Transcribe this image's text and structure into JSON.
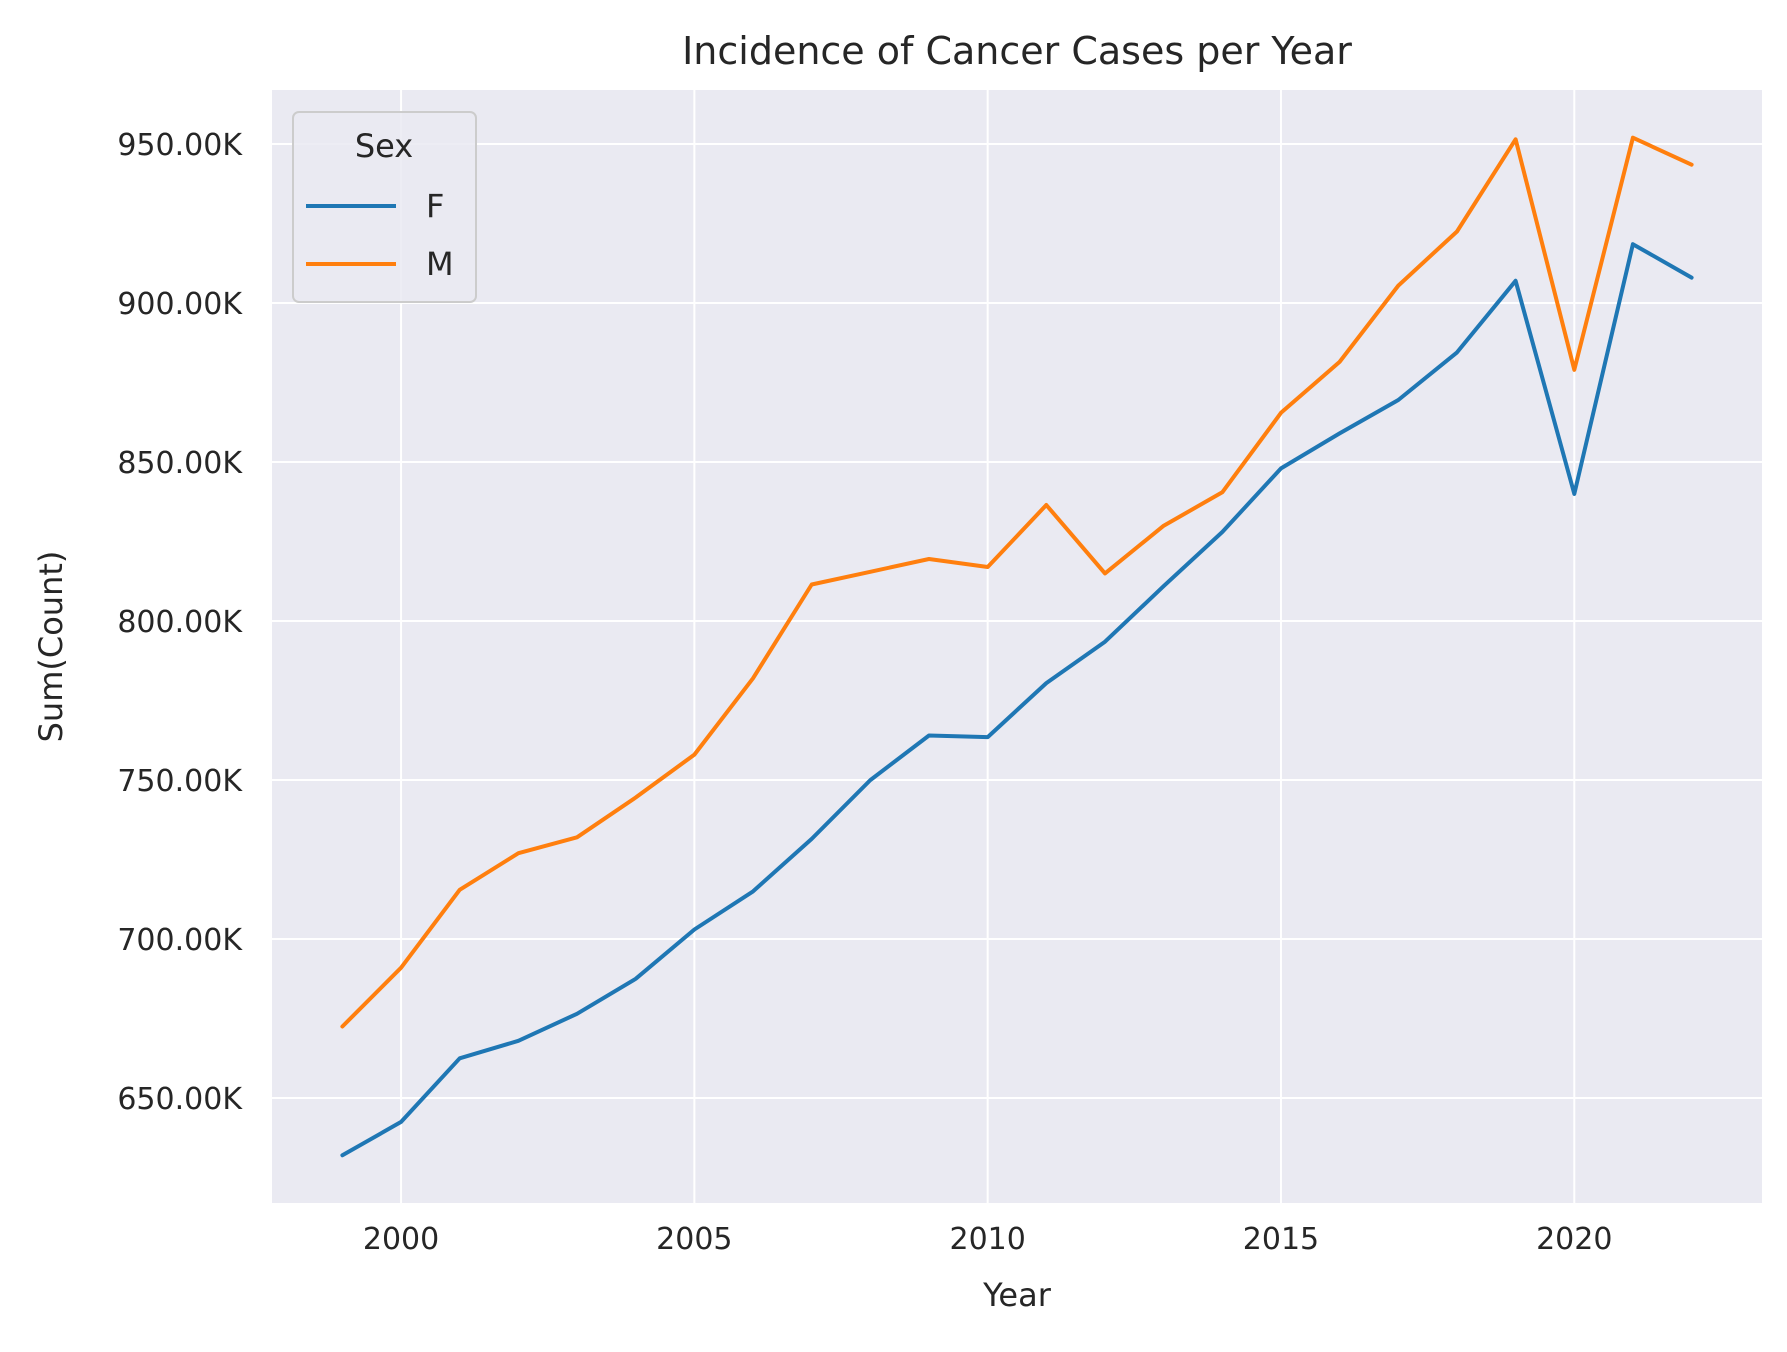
{
  "chart_data": {
    "type": "line",
    "title": "Incidence of Cancer Cases per Year",
    "xlabel": "Year",
    "ylabel": "Sum(Count)",
    "x": [
      1999,
      2000,
      2001,
      2002,
      2003,
      2004,
      2005,
      2006,
      2007,
      2008,
      2009,
      2010,
      2011,
      2012,
      2013,
      2014,
      2015,
      2016,
      2017,
      2018,
      2019,
      2020,
      2021,
      2022
    ],
    "xlim": [
      1997.8,
      2023.2
    ],
    "ylim": [
      617000,
      967000
    ],
    "xticks": [
      2000,
      2005,
      2010,
      2015,
      2020
    ],
    "xtick_labels": [
      "2000",
      "2005",
      "2010",
      "2015",
      "2020"
    ],
    "yticks": [
      650000,
      700000,
      750000,
      800000,
      850000,
      900000,
      950000
    ],
    "ytick_labels": [
      "650.00K",
      "700.00K",
      "750.00K",
      "800.00K",
      "850.00K",
      "900.00K",
      "950.00K"
    ],
    "grid": true,
    "legend": {
      "title": "Sex",
      "placement": "top-left"
    },
    "series": [
      {
        "name": "F",
        "color": "#1f77b4",
        "values": [
          632000,
          642500,
          662500,
          668000,
          676500,
          687500,
          703000,
          715000,
          731500,
          750000,
          764000,
          763500,
          780500,
          793500,
          811000,
          828000,
          848000,
          859000,
          869500,
          884500,
          907000,
          840000,
          918500,
          908000
        ]
      },
      {
        "name": "M",
        "color": "#ff7f0e",
        "values": [
          672500,
          691000,
          715500,
          727000,
          732000,
          744500,
          758000,
          782000,
          811500,
          815500,
          819500,
          817000,
          836500,
          815000,
          830000,
          840500,
          865500,
          881500,
          905500,
          922500,
          951500,
          879000,
          952000,
          943500
        ]
      }
    ]
  }
}
